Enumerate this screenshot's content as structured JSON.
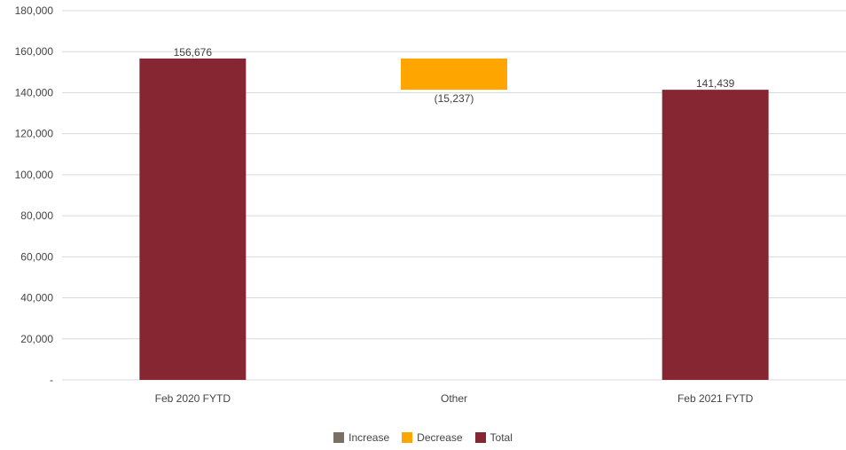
{
  "chart_data": {
    "type": "bar",
    "subtype": "waterfall",
    "categories": [
      "Feb 2020 FYTD",
      "Other",
      "Feb 2021 FYTD"
    ],
    "values": [
      156676,
      -15237,
      141439
    ],
    "kinds": [
      "total",
      "decrease",
      "total"
    ],
    "data_labels": [
      "156,676",
      "(15,237)",
      "141,439"
    ],
    "ylim": [
      0,
      180000
    ],
    "yticks": [
      0,
      20000,
      40000,
      60000,
      80000,
      100000,
      120000,
      140000,
      160000,
      180000
    ],
    "ytick_labels": [
      "-",
      "20,000",
      "40,000",
      "60,000",
      "80,000",
      "100,000",
      "120,000",
      "140,000",
      "160,000",
      "180,000"
    ],
    "grid": true,
    "legend_position": "bottom",
    "legend": [
      {
        "name": "Increase",
        "color": "#7a6f65"
      },
      {
        "name": "Decrease",
        "color": "#ffa500"
      },
      {
        "name": "Total",
        "color": "#862633"
      }
    ],
    "colors": {
      "increase": "#7a6f65",
      "decrease": "#ffa500",
      "total": "#862633",
      "grid": "#d9d9d9"
    }
  }
}
